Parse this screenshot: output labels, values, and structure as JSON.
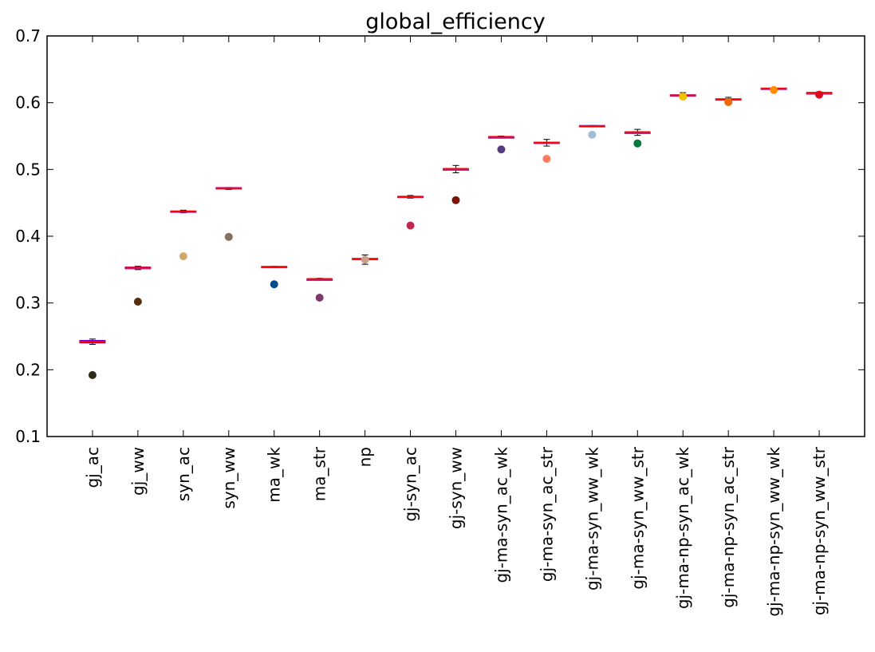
{
  "chart_data": {
    "type": "scatter",
    "title": "global_efficiency",
    "xlabel": "",
    "ylabel": "",
    "ylim": [
      0.1,
      0.7
    ],
    "y_ticks": [
      "0.1",
      "0.2",
      "0.3",
      "0.4",
      "0.5",
      "0.6",
      "0.7"
    ],
    "grid": false,
    "categories": [
      "gj_ac",
      "gj_ww",
      "syn_ac",
      "syn_ww",
      "ma_wk",
      "ma_str",
      "np",
      "gj-syn_ac",
      "gj-syn_ww",
      "gj-ma-syn_ac_wk",
      "gj-ma-syn_ac_str",
      "gj-ma-syn_ww_wk",
      "gj-ma-syn_ww_str",
      "gj-ma-np-syn_ac_wk",
      "gj-ma-np-syn_ac_str",
      "gj-ma-np-syn_ww_wk",
      "gj-ma-np-syn_ww_str"
    ],
    "series": [
      {
        "values": [
          0.192,
          0.302,
          0.37,
          0.399,
          0.328,
          0.308,
          0.365,
          0.416,
          0.454,
          0.53,
          0.516,
          0.552,
          0.539,
          0.609,
          0.601,
          0.619,
          0.612
        ],
        "colors": [
          "#2b2b18",
          "#5a2d0c",
          "#d4a86a",
          "#857060",
          "#004c8c",
          "#7a3b6b",
          "#c8a08a",
          "#c0284f",
          "#7a1408",
          "#563c7f",
          "#ff7b5c",
          "#a3bcd4",
          "#007a3d",
          "#f2c200",
          "#ee6a00",
          "#ff8c00",
          "#dc0a1e"
        ]
      }
    ],
    "boxes": [
      {
        "median": 0.242,
        "q1": 0.24,
        "q3": 0.244,
        "whisker_low": 0.238,
        "whisker_high": 0.246,
        "box_color": "#7a00d6"
      },
      {
        "median": 0.353,
        "q1": 0.351,
        "q3": 0.354,
        "whisker_low": 0.35,
        "whisker_high": 0.355,
        "box_color": "#9b2fae"
      },
      {
        "median": 0.437,
        "q1": 0.436,
        "q3": 0.438,
        "whisker_low": 0.435,
        "whisker_high": 0.439,
        "box_color": "#9b2fae"
      },
      {
        "median": 0.472,
        "q1": 0.471,
        "q3": 0.473,
        "whisker_low": 0.47,
        "whisker_high": 0.473,
        "box_color": "#9b2fae"
      },
      {
        "median": 0.354,
        "q1": 0.354,
        "q3": 0.355,
        "whisker_low": 0.353,
        "whisker_high": 0.355,
        "box_color": "#9b2fae"
      },
      {
        "median": 0.336,
        "q1": 0.335,
        "q3": 0.336,
        "whisker_low": 0.335,
        "whisker_high": 0.337,
        "box_color": "#9b2fae"
      },
      {
        "median": 0.366,
        "q1": 0.365,
        "q3": 0.367,
        "whisker_low": 0.358,
        "whisker_high": 0.372,
        "box_color": "#9b2fae"
      },
      {
        "median": 0.459,
        "q1": 0.458,
        "q3": 0.46,
        "whisker_low": 0.457,
        "whisker_high": 0.461,
        "box_color": "#9b2fae"
      },
      {
        "median": 0.501,
        "q1": 0.5,
        "q3": 0.501,
        "whisker_low": 0.495,
        "whisker_high": 0.506,
        "box_color": "#9b2fae"
      },
      {
        "median": 0.549,
        "q1": 0.548,
        "q3": 0.549,
        "whisker_low": 0.548,
        "whisker_high": 0.55,
        "box_color": "#9b2fae"
      },
      {
        "median": 0.54,
        "q1": 0.54,
        "q3": 0.541,
        "whisker_low": 0.535,
        "whisker_high": 0.545,
        "box_color": "#9b2fae"
      },
      {
        "median": 0.565,
        "q1": 0.564,
        "q3": 0.566,
        "whisker_low": 0.564,
        "whisker_high": 0.566,
        "box_color": "#9b2fae"
      },
      {
        "median": 0.556,
        "q1": 0.555,
        "q3": 0.556,
        "whisker_low": 0.551,
        "whisker_high": 0.56,
        "box_color": "#9b2fae"
      },
      {
        "median": 0.611,
        "q1": 0.61,
        "q3": 0.612,
        "whisker_low": 0.607,
        "whisker_high": 0.615,
        "box_color": "#9b2fae"
      },
      {
        "median": 0.605,
        "q1": 0.604,
        "q3": 0.606,
        "whisker_low": 0.601,
        "whisker_high": 0.608,
        "box_color": "#9b2fae"
      },
      {
        "median": 0.621,
        "q1": 0.62,
        "q3": 0.622,
        "whisker_low": 0.62,
        "whisker_high": 0.622,
        "box_color": "#9b2fae"
      },
      {
        "median": 0.615,
        "q1": 0.614,
        "q3": 0.615,
        "whisker_low": 0.613,
        "whisker_high": 0.616,
        "box_color": "#9b2fae"
      }
    ],
    "median_color": "#ff0000",
    "whisker_color": "#000000"
  }
}
